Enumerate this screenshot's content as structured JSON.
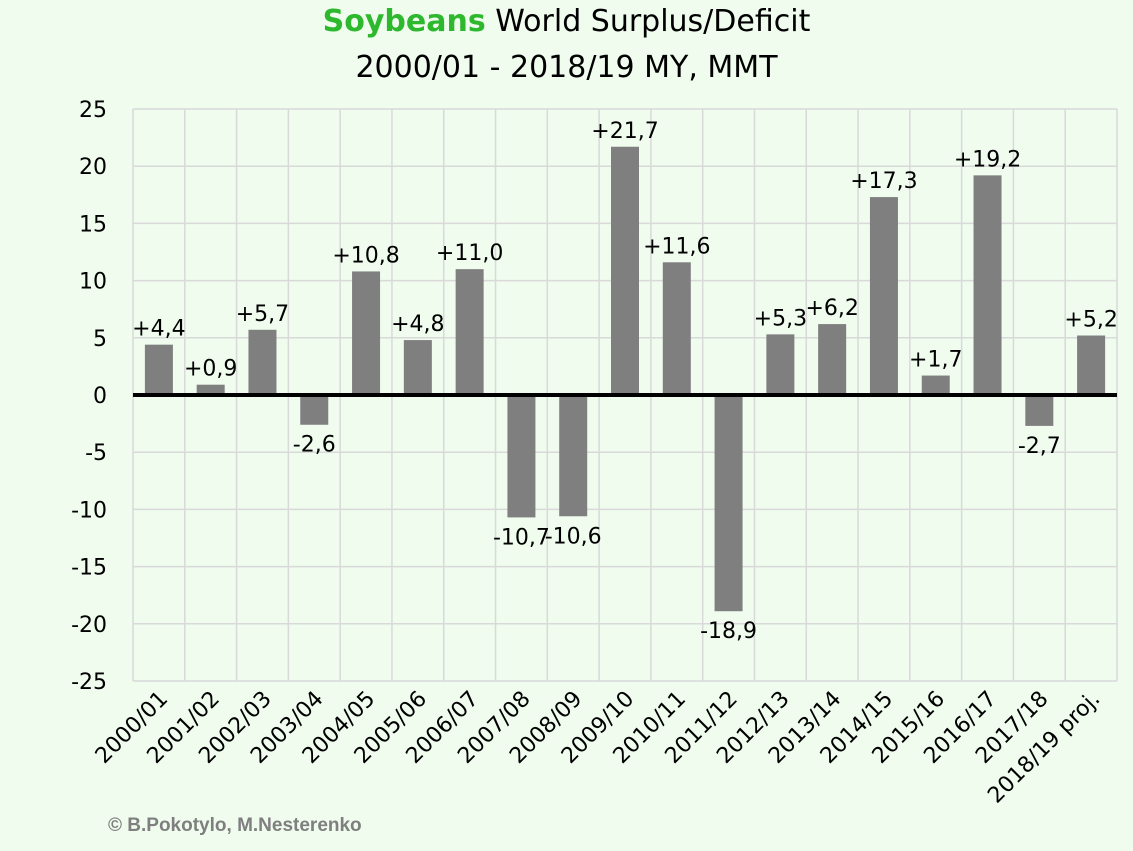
{
  "title": {
    "highlight": "Soybeans",
    "rest": "World Surplus/Deficit",
    "line2": "2000/01 - 2018/19 MY, MMT"
  },
  "credit": "© B.Pokotylo, M.Nesterenko",
  "colors": {
    "background": "#effcee",
    "bar": "#7f7f7f",
    "highlight": "#2db82d",
    "grid": "#d9d9d9",
    "zero_line": "#000000"
  },
  "chart_data": {
    "type": "bar",
    "title": "Soybeans World Surplus/Deficit 2000/01 - 2018/19 MY, MMT",
    "xlabel": "",
    "ylabel": "",
    "ylim": [
      -25,
      25
    ],
    "yticks": [
      25,
      20,
      15,
      10,
      5,
      0,
      -5,
      -10,
      -15,
      -20,
      -25
    ],
    "grid": true,
    "categories": [
      "2000/01",
      "2001/02",
      "2002/03",
      "2003/04",
      "2004/05",
      "2005/06",
      "2006/07",
      "2007/08",
      "2008/09",
      "2009/10",
      "2010/11",
      "2011/12",
      "2012/13",
      "2013/14",
      "2014/15",
      "2015/16",
      "2016/17",
      "2017/18",
      "2018/19 proj."
    ],
    "values": [
      4.4,
      0.9,
      5.7,
      -2.6,
      10.8,
      4.8,
      11.0,
      -10.7,
      -10.6,
      21.7,
      11.6,
      -18.9,
      5.3,
      6.2,
      17.3,
      1.7,
      19.2,
      -2.7,
      5.2
    ],
    "labels": [
      "+4,4",
      "+0,9",
      "+5,7",
      "-2,6",
      "+10,8",
      "+4,8",
      "+11,0",
      "-10,7",
      "-10,6",
      "+21,7",
      "+11,6",
      "-18,9",
      "+5,3",
      "+6,2",
      "+17,3",
      "+1,7",
      "+19,2",
      "-2,7",
      "+5,2"
    ]
  }
}
